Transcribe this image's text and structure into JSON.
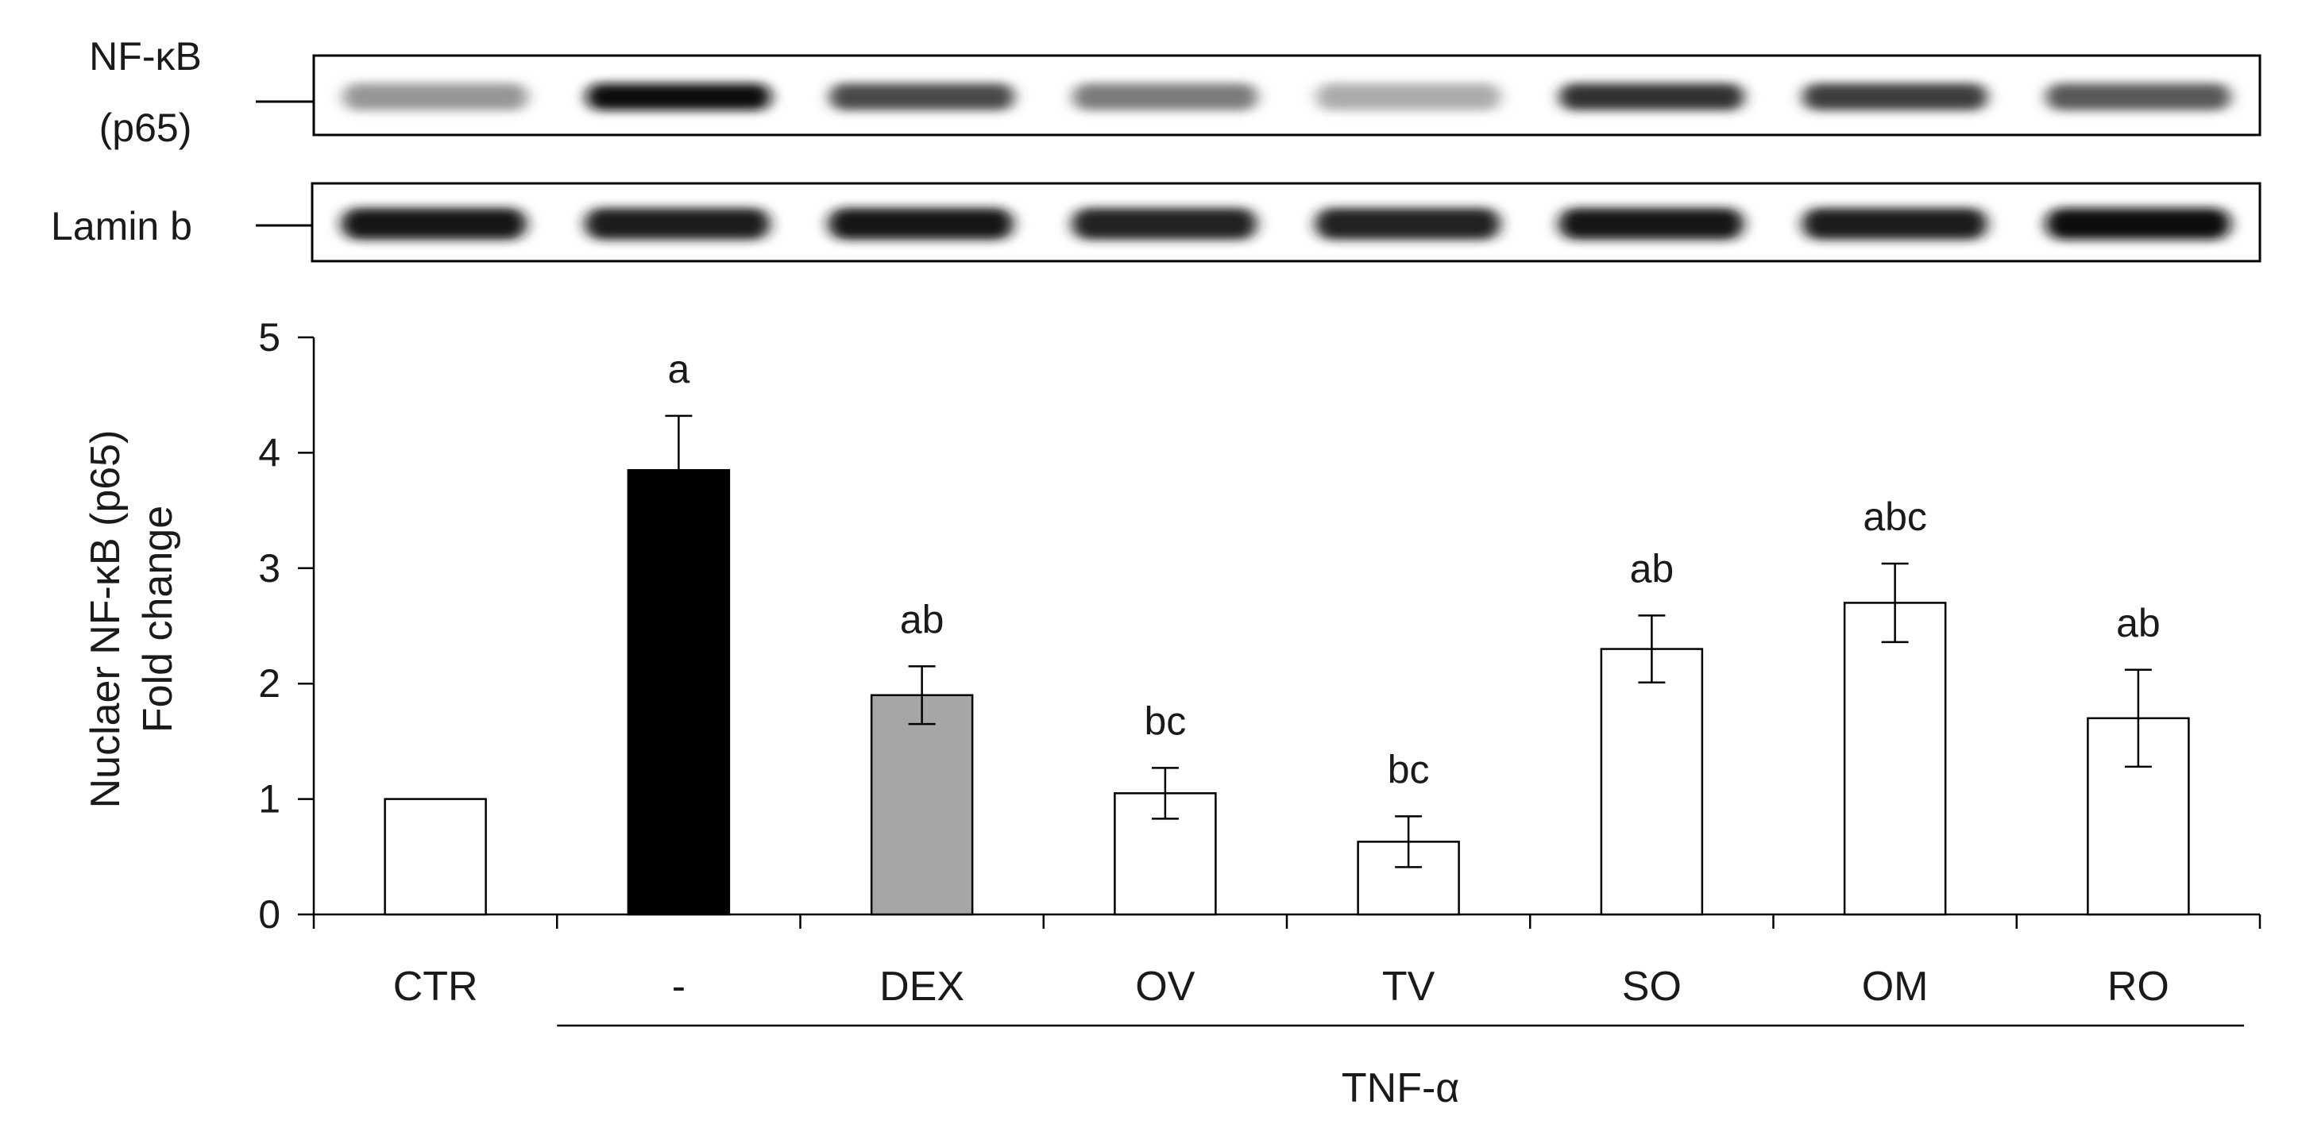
{
  "blot": {
    "lanes": 8,
    "rows": [
      {
        "label_lines": [
          "NF-κB",
          "(p65)"
        ],
        "intensities": [
          0.38,
          1.0,
          0.72,
          0.5,
          0.28,
          0.82,
          0.78,
          0.65
        ]
      },
      {
        "label_lines": [
          "Lamin b"
        ],
        "intensities": [
          0.95,
          0.92,
          0.95,
          0.9,
          0.9,
          0.95,
          0.93,
          0.97
        ]
      }
    ]
  },
  "chart_data": {
    "type": "bar",
    "categories": [
      "CTR",
      "-",
      "DEX",
      "OV",
      "TV",
      "SO",
      "OM",
      "RO"
    ],
    "values": [
      1.0,
      3.85,
      1.9,
      1.05,
      0.63,
      2.3,
      2.7,
      1.7
    ],
    "errors": [
      0,
      0.47,
      0.25,
      0.22,
      0.22,
      0.29,
      0.34,
      0.42
    ],
    "significance": [
      "",
      "a",
      "ab",
      "bc",
      "bc",
      "ab",
      "abc",
      "ab"
    ],
    "bar_fills": [
      "#ffffff",
      "#000000",
      "#a6a6a6",
      "#ffffff",
      "#ffffff",
      "#ffffff",
      "#ffffff",
      "#ffffff"
    ],
    "ylabel_lines": [
      "Nuclaer NF-κB (p65)",
      "Fold change"
    ],
    "ylim": [
      0,
      5
    ],
    "yticks": [
      0,
      1,
      2,
      3,
      4,
      5
    ],
    "group_label": "TNF-α",
    "group_span": [
      "-",
      "RO"
    ],
    "grid": false,
    "legend": "none"
  }
}
